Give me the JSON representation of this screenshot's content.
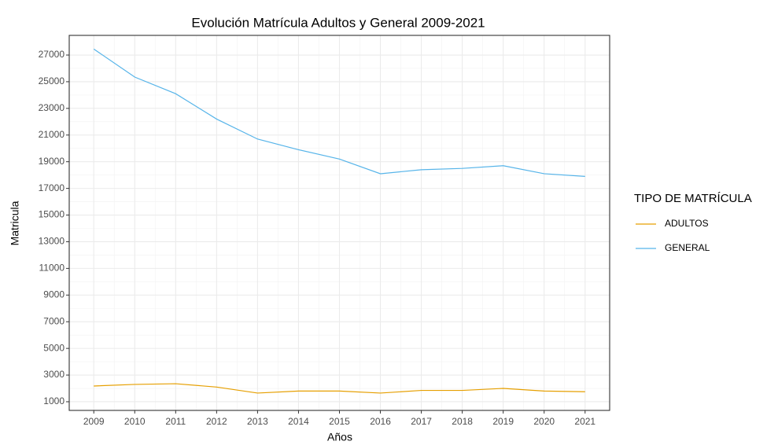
{
  "chart_data": {
    "type": "line",
    "title": "Evolución Matrícula Adultos y General 2009-2021",
    "x_label": "Años",
    "y_label": "Matricula",
    "legend_title": "TIPO DE MATRÍCULA",
    "legend_position": "right",
    "grid": true,
    "x": [
      2009,
      2010,
      2011,
      2012,
      2013,
      2014,
      2015,
      2016,
      2017,
      2018,
      2019,
      2020,
      2021
    ],
    "series": [
      {
        "name": "ADULTOS",
        "color": "#E69F00",
        "values": [
          2180,
          2300,
          2350,
          2100,
          1650,
          1800,
          1800,
          1650,
          1850,
          1850,
          2000,
          1800,
          1750
        ]
      },
      {
        "name": "GENERAL",
        "color": "#56B4E9",
        "values": [
          27450,
          25350,
          24100,
          22200,
          20700,
          19900,
          19200,
          18100,
          18400,
          18500,
          18700,
          18100,
          17900
        ]
      }
    ],
    "xlim": [
      2008.4,
      2021.6
    ],
    "xticks": [
      2009,
      2010,
      2011,
      2012,
      2013,
      2014,
      2015,
      2016,
      2017,
      2018,
      2019,
      2020,
      2021
    ],
    "ylim": [
      350,
      28475
    ],
    "yticks": [
      1000,
      3000,
      5000,
      7000,
      9000,
      11000,
      13000,
      15000,
      17000,
      19000,
      21000,
      23000,
      25000,
      27000
    ]
  }
}
